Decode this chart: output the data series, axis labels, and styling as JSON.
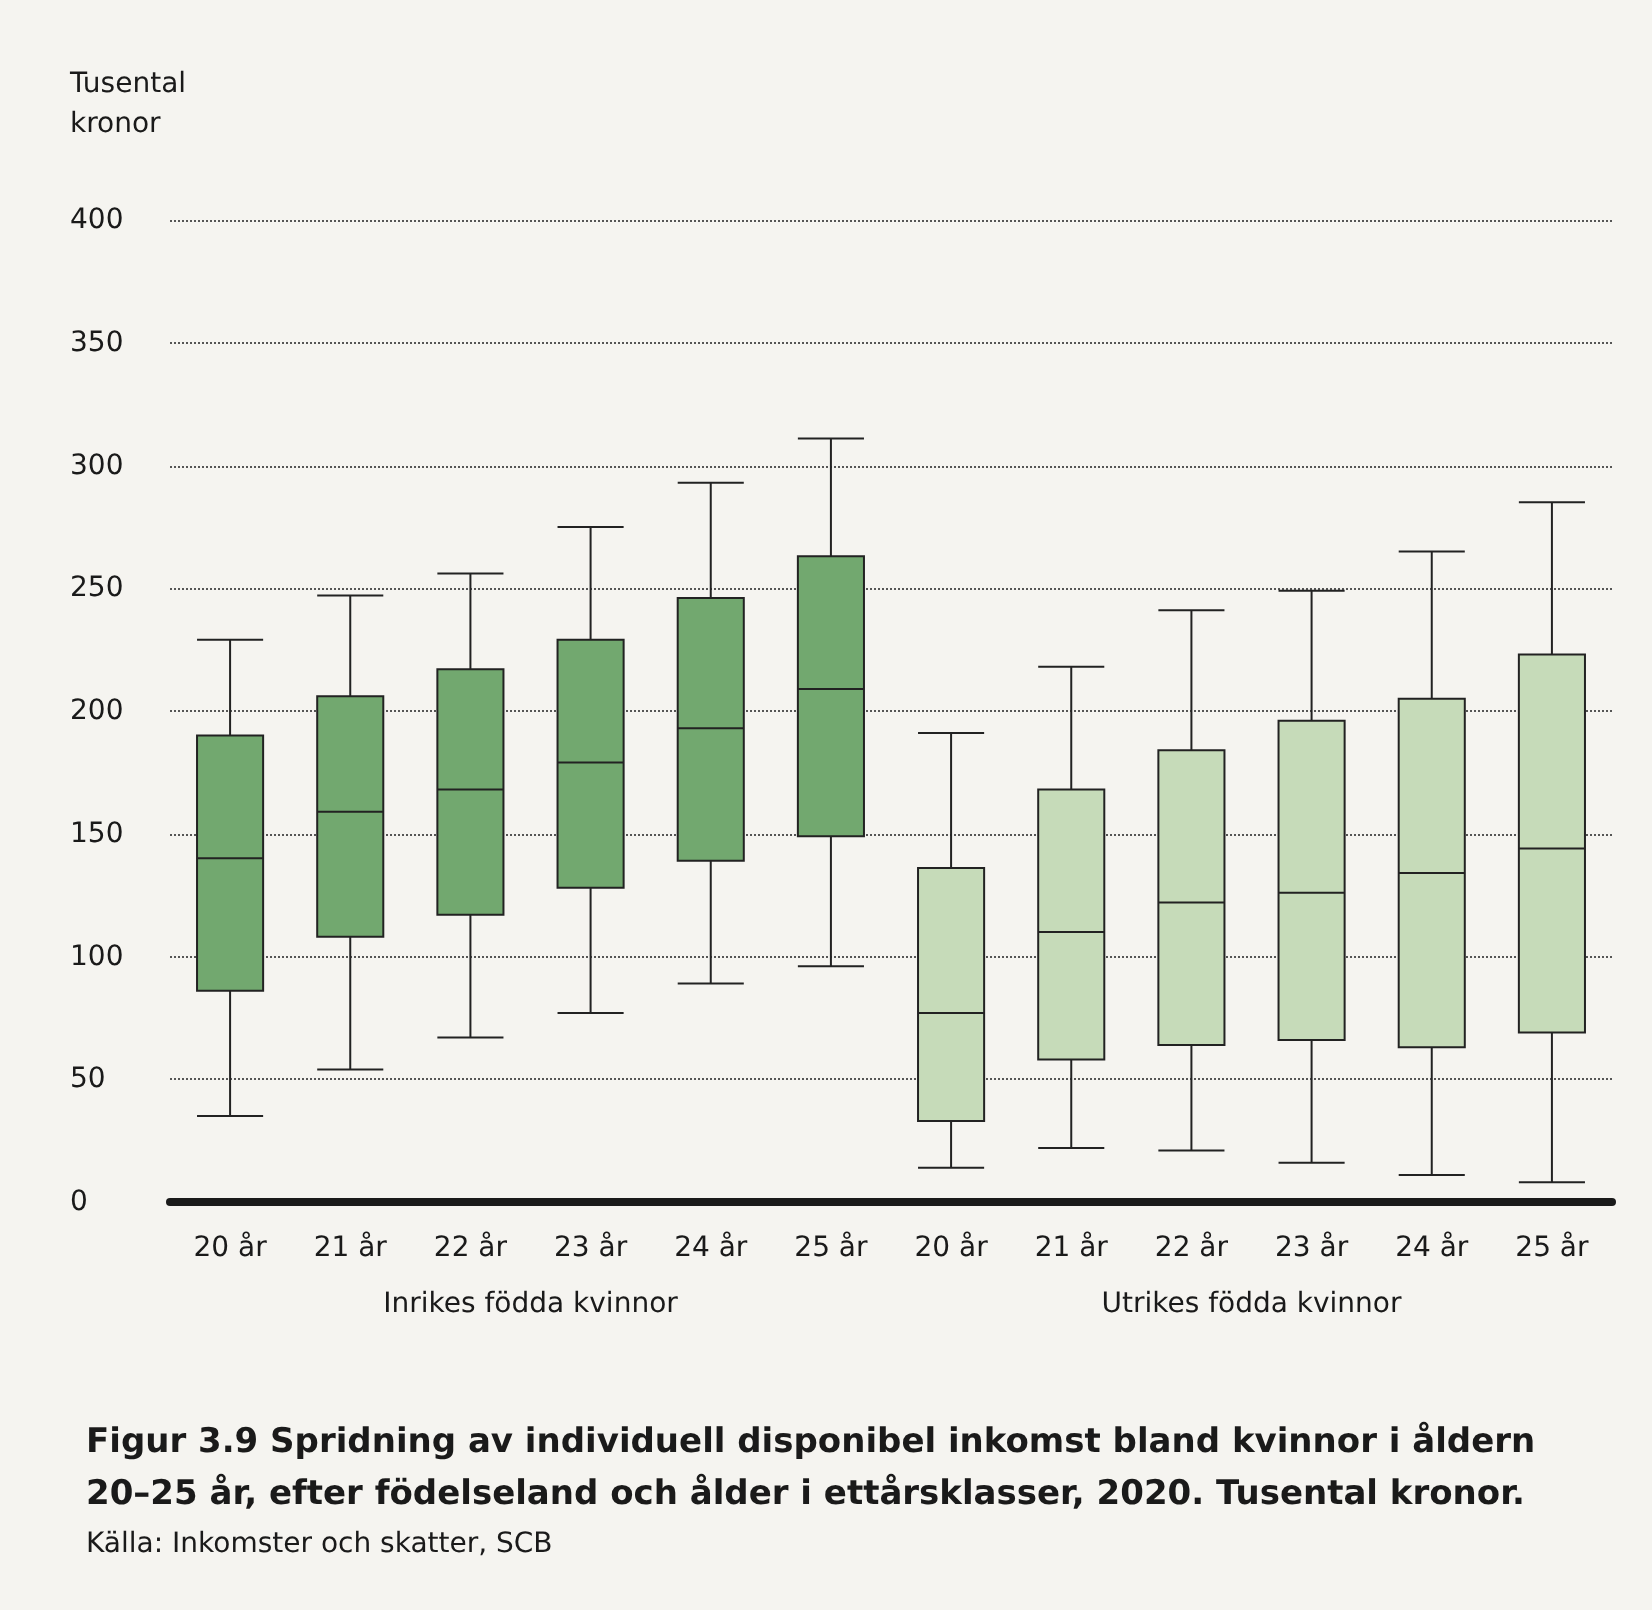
{
  "chart_data": {
    "type": "box",
    "title": "Figur 3.9 Spridning av individuell disponibel inkomst bland kvinnor i åldern 20–25 år, efter födelseland och ålder i ettårsklasser, 2020. Tusental kronor.",
    "ylabel": "Tusental\nkronor",
    "annotations": [
      "Inrikes födda kvinnor",
      "Utrikes födda kvinnor",
      "Källa: Inkomster och skatter, SCB"
    ],
    "categories": [
      "20 år",
      "21 år",
      "22 år",
      "23 år",
      "24 år",
      "25 år",
      "20 år",
      "21 år",
      "22 år",
      "23 år",
      "24 år",
      "25 år"
    ],
    "series": [
      {
        "color": "#72a86f",
        "boxes": [
          {
            "low": 35,
            "q1": 86,
            "median": 140,
            "q3": 190,
            "high": 229
          },
          {
            "low": 54,
            "q1": 108,
            "median": 159,
            "q3": 206,
            "high": 247
          },
          {
            "low": 67,
            "q1": 117,
            "median": 168,
            "q3": 217,
            "high": 256
          },
          {
            "low": 77,
            "q1": 128,
            "median": 179,
            "q3": 229,
            "high": 275
          },
          {
            "low": 89,
            "q1": 139,
            "median": 193,
            "q3": 246,
            "high": 293
          },
          {
            "low": 96,
            "q1": 149,
            "median": 209,
            "q3": 263,
            "high": 311
          },
          null,
          null,
          null,
          null,
          null,
          null
        ]
      },
      {
        "color": "#c6dbb9",
        "boxes": [
          null,
          null,
          null,
          null,
          null,
          null,
          {
            "low": 14,
            "q1": 33,
            "median": 77,
            "q3": 136,
            "high": 191
          },
          {
            "low": 22,
            "q1": 58,
            "median": 110,
            "q3": 168,
            "high": 218
          },
          {
            "low": 21,
            "q1": 64,
            "median": 122,
            "q3": 184,
            "high": 241
          },
          {
            "low": 16,
            "q1": 66,
            "median": 126,
            "q3": 196,
            "high": 249
          },
          {
            "low": 11,
            "q1": 63,
            "median": 134,
            "q3": 205,
            "high": 265
          },
          {
            "low": 8,
            "q1": 69,
            "median": 144,
            "q3": 223,
            "high": 285
          }
        ]
      }
    ],
    "ylim": [
      0,
      400
    ],
    "yticks": [
      0,
      50,
      100,
      150,
      200,
      250,
      300,
      350,
      400
    ],
    "grid": "y"
  }
}
